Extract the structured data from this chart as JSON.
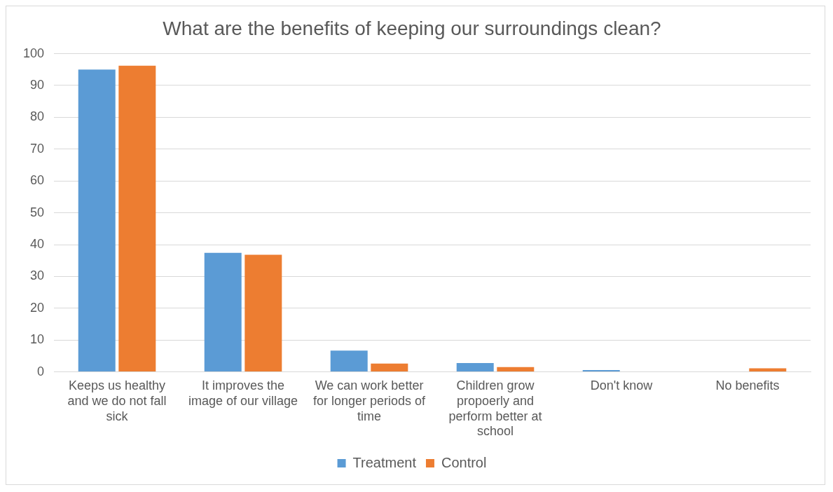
{
  "chart_data": {
    "type": "bar",
    "title": "What are the benefits of keeping our surroundings clean?",
    "categories": [
      "Keeps us healthy and we do not fall sick",
      "It improves the image of our village",
      "We can work better for longer periods of time",
      "Children grow propoerly and perform better at school",
      "Don't know",
      "No benefits"
    ],
    "series": [
      {
        "name": "Treatment",
        "color": "#5b9bd5",
        "values": [
          95,
          37.4,
          6.7,
          2.8,
          0.6,
          0
        ]
      },
      {
        "name": "Control",
        "color": "#ed7d31",
        "values": [
          96.2,
          36.8,
          2.6,
          1.5,
          0,
          1.1
        ]
      }
    ],
    "ylim": [
      0,
      100
    ],
    "yticks": [
      0,
      10,
      20,
      30,
      40,
      50,
      60,
      70,
      80,
      90,
      100
    ],
    "grid": "y",
    "legend": "bottom"
  }
}
